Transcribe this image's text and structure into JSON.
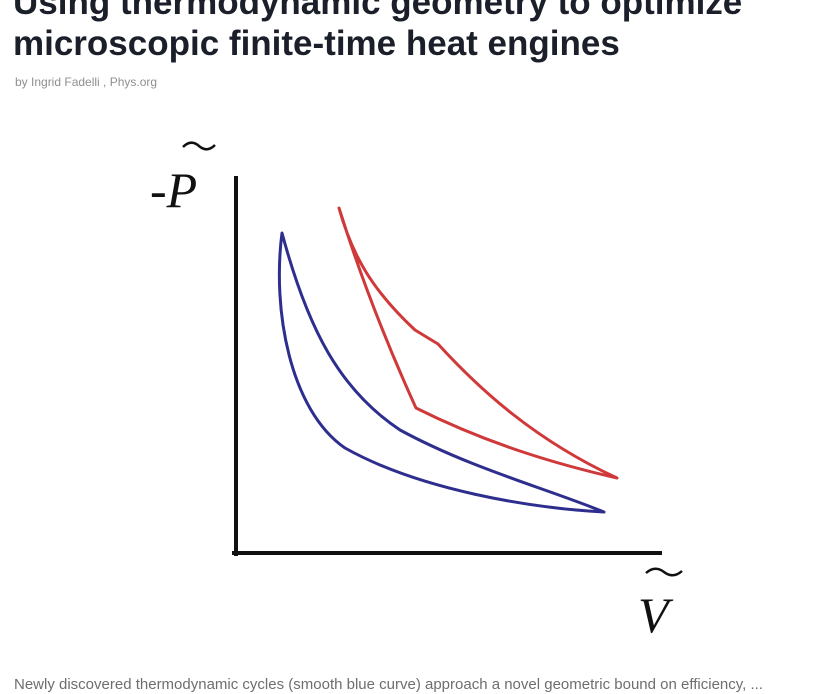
{
  "article": {
    "title_line_1": "Using thermodynamic geometry to optimize",
    "title_line_2": "microscopic finite-time heat engines",
    "byline": "by Ingrid Fadelli , Phys.org"
  },
  "figure": {
    "y_axis_label": "-P",
    "x_axis_label": "V",
    "colors": {
      "axes": "#111111",
      "smooth_cycle": "#2e2e8f",
      "angular_cycle": "#d0393a"
    }
  },
  "caption": {
    "text": "Newly discovered thermodynamic cycles (smooth blue curve) approach a novel geometric bound on efficiency, ..."
  }
}
